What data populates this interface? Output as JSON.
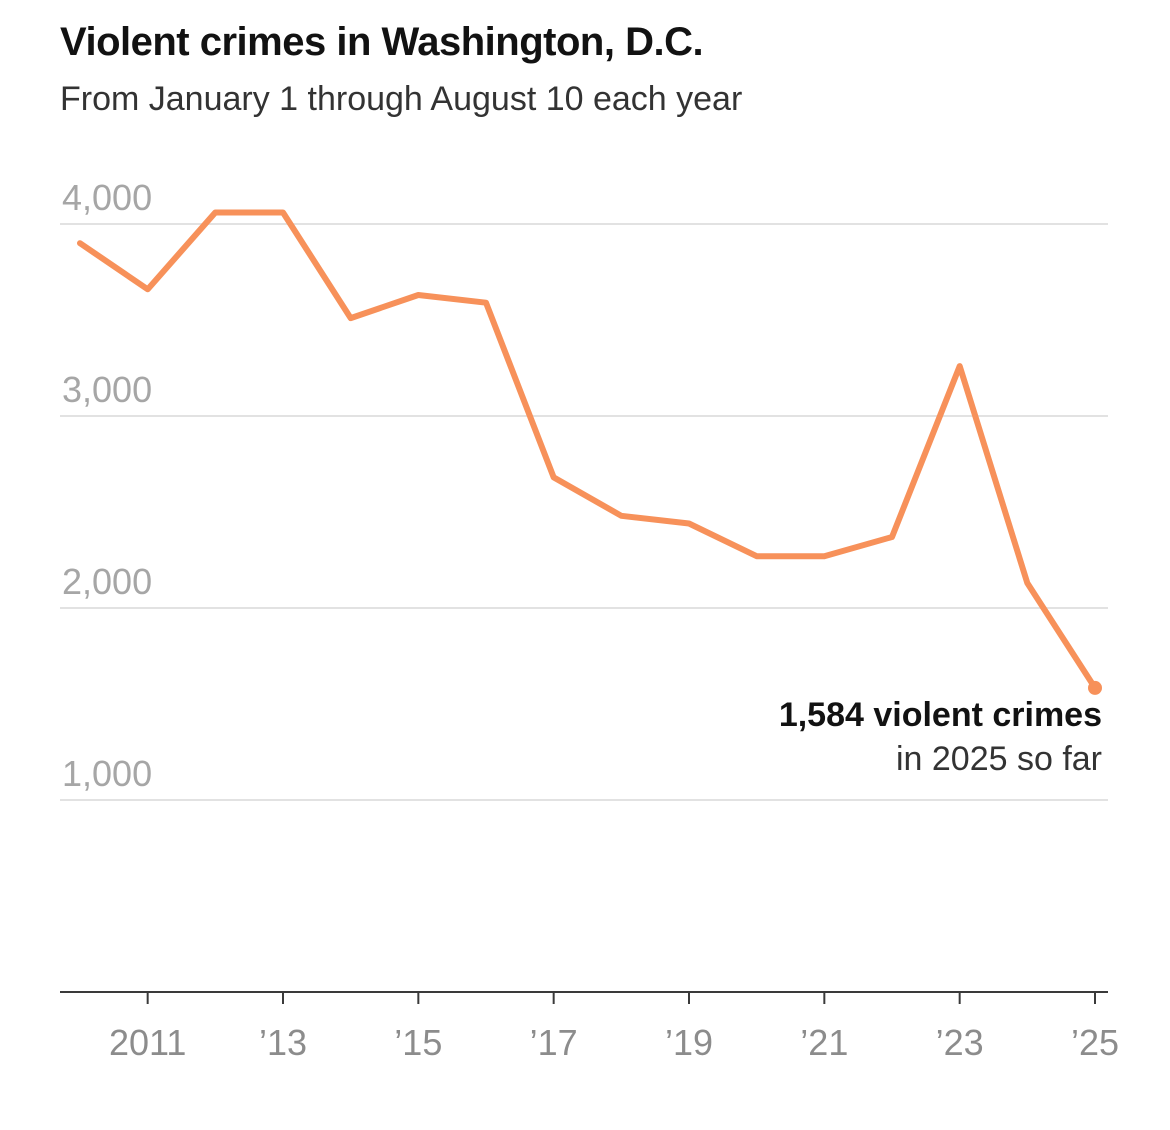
{
  "chart_data": {
    "type": "line",
    "title": "Violent crimes in Washington, D.C.",
    "subtitle": "From January 1 through August 10 each year",
    "xlabel": "",
    "ylabel": "",
    "ylim": [
      0,
      4000
    ],
    "xlim": [
      2010,
      2025
    ],
    "grid": true,
    "y_ticks": [
      {
        "value": 1000,
        "label": "1,000"
      },
      {
        "value": 2000,
        "label": "2,000"
      },
      {
        "value": 3000,
        "label": "3,000"
      },
      {
        "value": 4000,
        "label": "4,000"
      }
    ],
    "x_ticks": [
      {
        "value": 2011,
        "label": "2011"
      },
      {
        "value": 2013,
        "label": "’13"
      },
      {
        "value": 2015,
        "label": "’15"
      },
      {
        "value": 2017,
        "label": "’17"
      },
      {
        "value": 2019,
        "label": "’19"
      },
      {
        "value": 2021,
        "label": "’21"
      },
      {
        "value": 2023,
        "label": "’23"
      },
      {
        "value": 2025,
        "label": "’25"
      }
    ],
    "series": [
      {
        "name": "Violent crimes",
        "color": "#f7915a",
        "x": [
          2010,
          2011,
          2012,
          2013,
          2014,
          2015,
          2016,
          2017,
          2018,
          2019,
          2020,
          2021,
          2022,
          2023,
          2024,
          2025
        ],
        "values": [
          3900,
          3660,
          4060,
          4060,
          3510,
          3630,
          3590,
          2680,
          2480,
          2440,
          2270,
          2270,
          2370,
          3260,
          2130,
          1584
        ]
      }
    ],
    "annotation": {
      "value_text": "1,584 violent crimes",
      "note_text": "in 2025 so far"
    }
  }
}
